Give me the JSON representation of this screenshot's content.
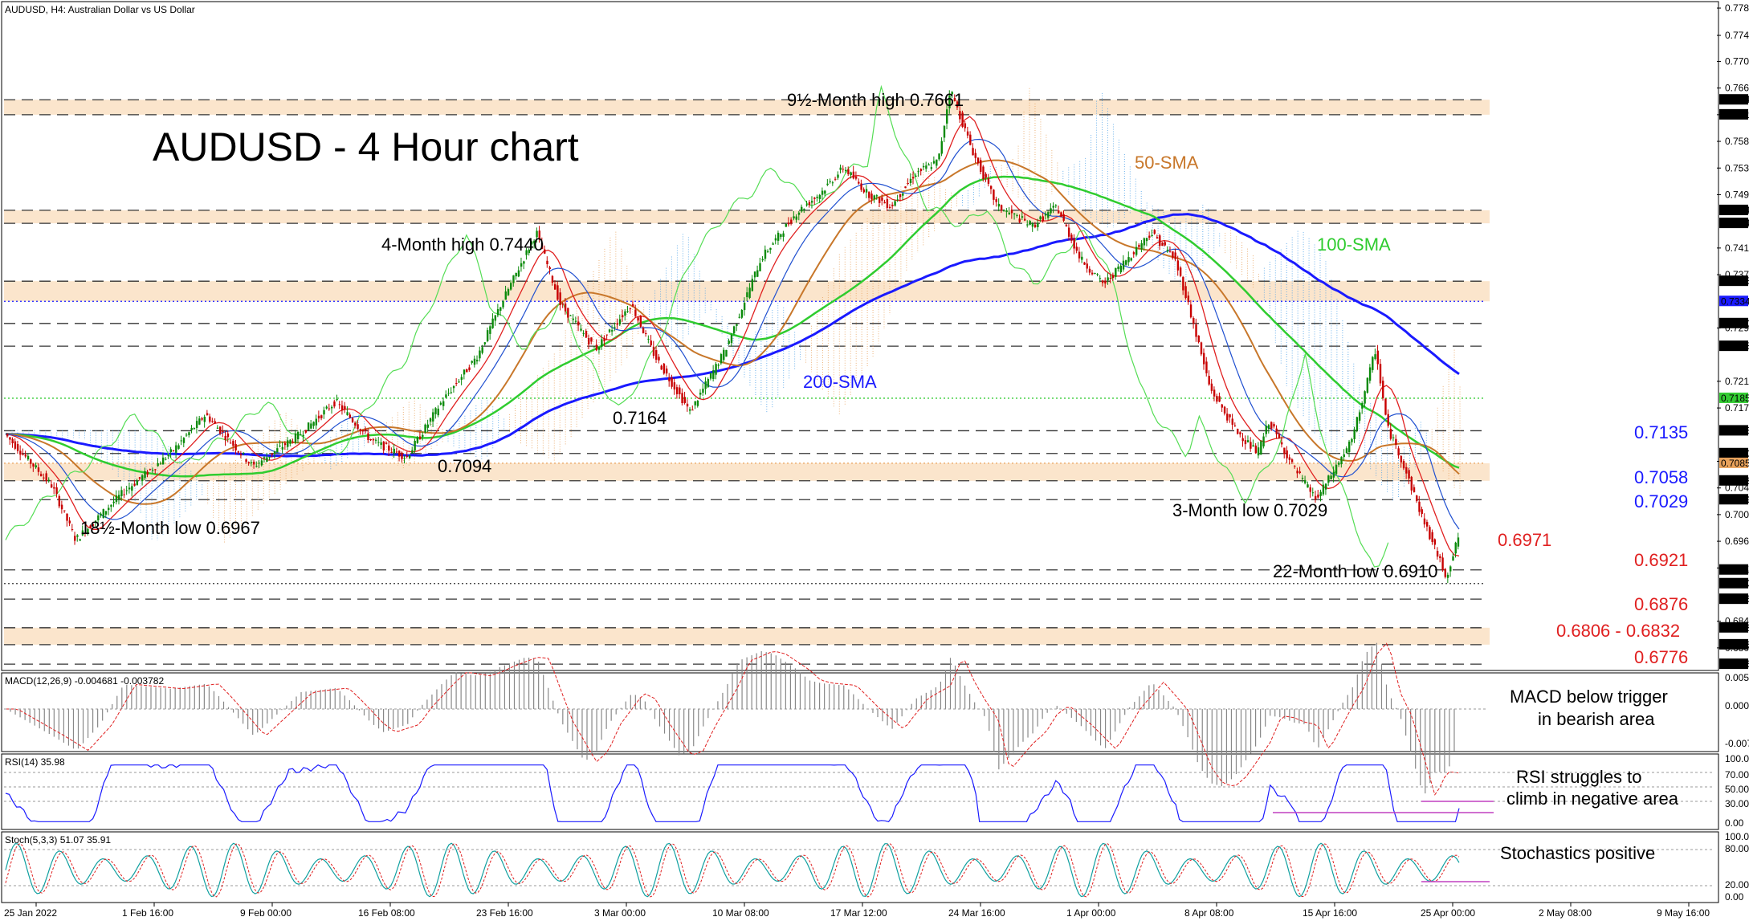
{
  "header": "AUDUSD, H4:  Australian Dollar vs US Dollar",
  "chart_data": {
    "type": "line",
    "title": "AUDUSD - 4 Hour chart",
    "symbol": "AUDUSD",
    "timeframe": "H4",
    "x_labels": [
      "25 Jan 2022",
      "1 Feb 16:00",
      "9 Feb 00:00",
      "16 Feb 08:00",
      "23 Feb 16:00",
      "3 Mar 00:00",
      "10 Mar 08:00",
      "17 Mar 12:00",
      "24 Mar 16:00",
      "1 Apr 00:00",
      "8 Apr 08:00",
      "15 Apr 16:00",
      "25 Apr 00:00",
      "2 May 08:00",
      "9 May 16:00"
    ],
    "price_axis": {
      "ylim": [
        0.677,
        0.779
      ],
      "ticks": [
        "0.77850",
        "0.77430",
        "0.77030",
        "0.76620",
        "0.76210",
        "0.75800",
        "0.75390",
        "0.74980",
        "0.74160",
        "0.73750",
        "0.72930",
        "0.72110",
        "0.71700",
        "0.70880",
        "0.70470",
        "0.70060",
        "0.69650",
        "0.69240",
        "0.68420",
        "0.68010"
      ],
      "highlight_ticks": [
        {
          "label": "0.76440",
          "value": 0.7644,
          "color": "#000000"
        },
        {
          "label": "0.76210",
          "value": 0.7621,
          "color": "#000000"
        },
        {
          "label": "0.74740",
          "value": 0.7474,
          "color": "#000000"
        },
        {
          "label": "0.74540",
          "value": 0.7454,
          "color": "#000000"
        },
        {
          "label": "0.73650",
          "value": 0.7365,
          "color": "#000000"
        },
        {
          "label": "0.73340",
          "value": 0.7334,
          "color": "#1a1aff"
        },
        {
          "label": "0.73000",
          "value": 0.73,
          "color": "#000000"
        },
        {
          "label": "0.72650",
          "value": 0.7265,
          "color": "#000000"
        },
        {
          "label": "0.71850",
          "value": 0.7185,
          "color": "#33cc33"
        },
        {
          "label": "0.71350",
          "value": 0.7135,
          "color": "#000000"
        },
        {
          "label": "0.71000",
          "value": 0.71,
          "color": "#000000"
        },
        {
          "label": "0.70850",
          "value": 0.7085,
          "color": "#e8a25c"
        },
        {
          "label": "0.70580",
          "value": 0.7058,
          "color": "#000000"
        },
        {
          "label": "0.70290",
          "value": 0.7029,
          "color": "#000000"
        },
        {
          "label": "0.69210",
          "value": 0.6921,
          "color": "#000000"
        },
        {
          "label": "0.69000",
          "value": 0.69,
          "color": "#000000"
        },
        {
          "label": "0.68760",
          "value": 0.6876,
          "color": "#000000"
        },
        {
          "label": "0.68320",
          "value": 0.6832,
          "color": "#000000"
        },
        {
          "label": "0.68060",
          "value": 0.6806,
          "color": "#000000"
        },
        {
          "label": "0.67760",
          "value": 0.6776,
          "color": "#000000"
        }
      ]
    },
    "zones": [
      {
        "from": 0.7621,
        "to": 0.7644
      },
      {
        "from": 0.7454,
        "to": 0.7474
      },
      {
        "from": 0.7334,
        "to": 0.7365
      },
      {
        "from": 0.7058,
        "to": 0.7085
      },
      {
        "from": 0.6806,
        "to": 0.6832
      }
    ],
    "series": [
      {
        "name": "50-SMA",
        "color": "#c8772a"
      },
      {
        "name": "100-SMA",
        "color": "#2fcc2f"
      },
      {
        "name": "200-SMA",
        "color": "#1a1aff"
      }
    ],
    "price_path": [
      [
        0,
        0.713
      ],
      [
        4,
        0.705
      ],
      [
        6,
        0.6967
      ],
      [
        10,
        0.704
      ],
      [
        14,
        0.71
      ],
      [
        17,
        0.716
      ],
      [
        19,
        0.712
      ],
      [
        21,
        0.708
      ],
      [
        25,
        0.713
      ],
      [
        28,
        0.718
      ],
      [
        31,
        0.712
      ],
      [
        34,
        0.7094
      ],
      [
        37,
        0.718
      ],
      [
        40,
        0.725
      ],
      [
        42,
        0.733
      ],
      [
        45,
        0.744
      ],
      [
        47,
        0.733
      ],
      [
        50,
        0.726
      ],
      [
        53,
        0.733
      ],
      [
        55,
        0.725
      ],
      [
        58,
        0.7164
      ],
      [
        61,
        0.726
      ],
      [
        64,
        0.74
      ],
      [
        67,
        0.747
      ],
      [
        69,
        0.75
      ],
      [
        71,
        0.754
      ],
      [
        73,
        0.75
      ],
      [
        75,
        0.748
      ],
      [
        77,
        0.753
      ],
      [
        79,
        0.755
      ],
      [
        80,
        0.7661
      ],
      [
        82,
        0.756
      ],
      [
        84,
        0.748
      ],
      [
        87,
        0.745
      ],
      [
        89,
        0.748
      ],
      [
        91,
        0.74
      ],
      [
        93,
        0.736
      ],
      [
        95,
        0.74
      ],
      [
        97,
        0.744
      ],
      [
        99,
        0.74
      ],
      [
        100,
        0.734
      ],
      [
        102,
        0.72
      ],
      [
        104,
        0.714
      ],
      [
        106,
        0.71
      ],
      [
        107,
        0.715
      ],
      [
        109,
        0.708
      ],
      [
        111,
        0.7029
      ],
      [
        113,
        0.709
      ],
      [
        114,
        0.712
      ],
      [
        116,
        0.726
      ],
      [
        117,
        0.714
      ],
      [
        118,
        0.71
      ],
      [
        120,
        0.7
      ],
      [
        122,
        0.691
      ],
      [
        123,
        0.6971
      ]
    ],
    "annotations": [
      {
        "text": "9½-Month high 0.7661",
        "color": "#000000"
      },
      {
        "text": "4-Month high 0.7440",
        "color": "#000000"
      },
      {
        "text": "0.7164",
        "color": "#000000"
      },
      {
        "text": "0.7094",
        "color": "#000000"
      },
      {
        "text": "18½-Month low 0.6967",
        "color": "#000000"
      },
      {
        "text": "3-Month low 0.7029",
        "color": "#000000"
      },
      {
        "text": "22-Month low 0.6910",
        "color": "#000000"
      },
      {
        "text": "50-SMA",
        "color": "#c8772a"
      },
      {
        "text": "100-SMA",
        "color": "#2fcc2f"
      },
      {
        "text": "200-SMA",
        "color": "#1a1aff"
      },
      {
        "text": "0.7135",
        "color": "#1a1aff"
      },
      {
        "text": "0.7058",
        "color": "#1a1aff"
      },
      {
        "text": "0.7029",
        "color": "#1a1aff"
      },
      {
        "text": "0.6971",
        "color": "#e02020"
      },
      {
        "text": "0.6921",
        "color": "#e02020"
      },
      {
        "text": "0.6876",
        "color": "#e02020"
      },
      {
        "text": "0.6806 - 0.6832",
        "color": "#e02020"
      },
      {
        "text": "0.6776",
        "color": "#e02020"
      }
    ],
    "panels": {
      "macd": {
        "label": "MACD(12,26,9) -0.004681 -0.003782",
        "ticks": [
          "0.005312",
          "0.000000",
          "-0.007426"
        ],
        "comment_1": "MACD below trigger",
        "comment_2": "in bearish area"
      },
      "rsi": {
        "label": "RSI(14) 35.98",
        "ticks": [
          "100.00",
          "70.00",
          "50.00",
          "30.00",
          "0.00"
        ],
        "comment_1": "RSI struggles to",
        "comment_2": "climb in negative area"
      },
      "stoch": {
        "label": "Stoch(5,3,3) 51.07 35.91",
        "ticks": [
          "100.00",
          "80.00",
          "20.00",
          "0.00"
        ],
        "comment": "Stochastics positive"
      }
    }
  }
}
